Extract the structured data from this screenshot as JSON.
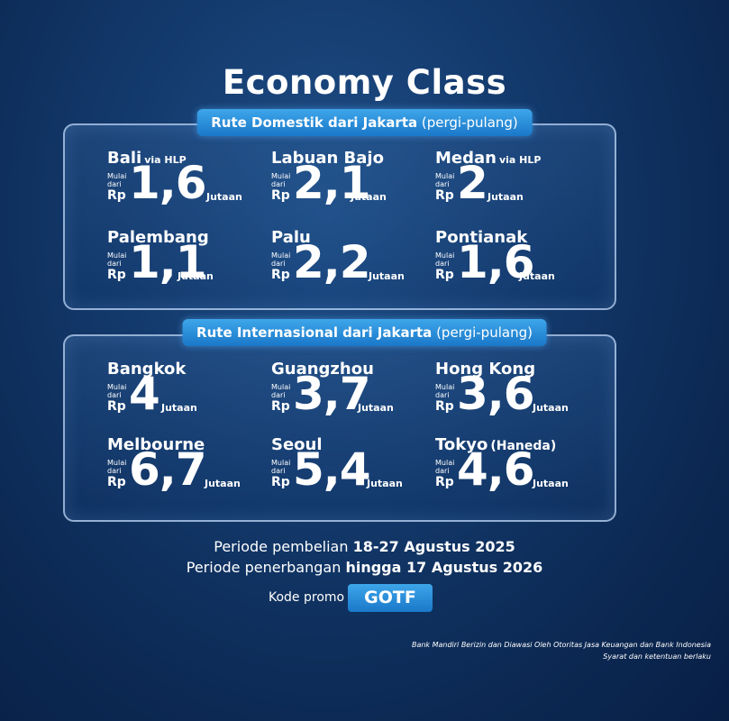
{
  "title": "Economy Class",
  "domestic": {
    "heading_bold": "Rute Domestik dari Jakarta",
    "heading_normal": "(pergi-pulang)",
    "routes": [
      {
        "city": "Bali",
        "via": "via HLP",
        "mulai": "Mulai",
        "dari": "dari",
        "rp": "Rp",
        "price": "1,6",
        "unit": "Jutaan"
      },
      {
        "city": "Labuan Bajo",
        "via": "",
        "mulai": "Mulai",
        "dari": "dari",
        "rp": "Rp",
        "price": "2,1",
        "unit": "Jutaan"
      },
      {
        "city": "Medan",
        "via": "via HLP",
        "mulai": "Mulai",
        "dari": "dari",
        "rp": "Rp",
        "price": "2",
        "unit": "Jutaan"
      },
      {
        "city": "Palembang",
        "via": "",
        "mulai": "Mulai",
        "dari": "dari",
        "rp": "Rp",
        "price": "1,1",
        "unit": "Jutaan"
      },
      {
        "city": "Palu",
        "via": "",
        "mulai": "Mulai",
        "dari": "dari",
        "rp": "Rp",
        "price": "2,2",
        "unit": "Jutaan"
      },
      {
        "city": "Pontianak",
        "via": "",
        "mulai": "Mulai",
        "dari": "dari",
        "rp": "Rp",
        "price": "1,6",
        "unit": "Jutaan"
      }
    ]
  },
  "international": {
    "heading_bold": "Rute Internasional dari Jakarta",
    "heading_normal": "(pergi-pulang)",
    "routes": [
      {
        "city": "Bangkok",
        "via": "",
        "mulai": "Mulai",
        "dari": "dari",
        "rp": "Rp",
        "price": "4",
        "unit": "Jutaan"
      },
      {
        "city": "Guangzhou",
        "via": "",
        "mulai": "Mulai",
        "dari": "dari",
        "rp": "Rp",
        "price": "3,7",
        "unit": "Jutaan"
      },
      {
        "city": "Hong Kong",
        "via": "",
        "mulai": "Mulai",
        "dari": "dari",
        "rp": "Rp",
        "price": "3,6",
        "unit": "Jutaan"
      },
      {
        "city": "Melbourne",
        "via": "",
        "mulai": "Mulai",
        "dari": "dari",
        "rp": "Rp",
        "price": "6,7",
        "unit": "Jutaan"
      },
      {
        "city": "Seoul",
        "via": "",
        "mulai": "Mulai",
        "dari": "dari",
        "rp": "Rp",
        "price": "5,4",
        "unit": "Jutaan"
      },
      {
        "city": "Tokyo",
        "via": "(Haneda)",
        "mulai": "Mulai",
        "dari": "dari",
        "rp": "Rp",
        "price": "4,6",
        "unit": "Jutaan"
      }
    ]
  },
  "period": {
    "purchase_label": "Periode pembelian",
    "purchase_value": "18-27 Agustus 2025",
    "flight_label": "Periode penerbangan",
    "flight_value": "hingga 17 Agustus 2026"
  },
  "promo": {
    "label": "Kode promo",
    "code": "GOTF"
  },
  "footer": {
    "line1": "Bank Mandiri Berizin dan Diawasi Oleh Otoritas Jasa Keuangan dan Bank Indonesia",
    "line2": "Syarat dan ketentuan berlaku"
  },
  "colors": {
    "background": "#0c2a55",
    "accent": "#2b8fdc",
    "text": "#ffffff"
  }
}
